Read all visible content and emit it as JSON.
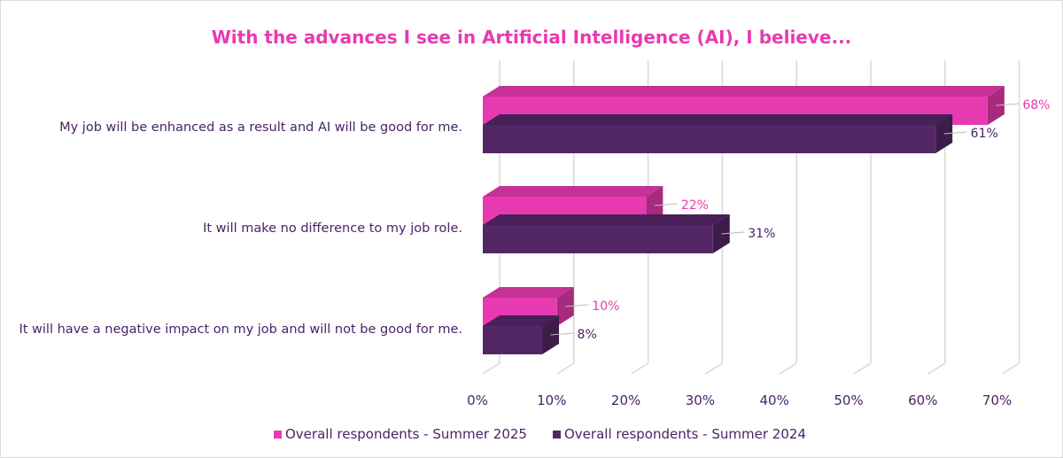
{
  "chart_data": {
    "type": "bar",
    "orientation": "horizontal",
    "title": "With the advances I see in Artificial Intelligence (AI), I believe...",
    "categories": [
      "My job will be enhanced as a result and AI will be good for me.",
      "It will make no difference to my job role.",
      "It will have a negative impact on my job and will not be good for me."
    ],
    "series": [
      {
        "name": "Overall respondents - Summer 2025",
        "values": [
          68,
          22,
          10
        ],
        "color": "#e83ab0"
      },
      {
        "name": "Overall respondents - Summer 2024",
        "values": [
          61,
          31,
          8
        ],
        "color": "#532766"
      }
    ],
    "value_unit": "%",
    "xlim": [
      0,
      70
    ],
    "x_ticks": [
      "0%",
      "10%",
      "20%",
      "30%",
      "40%",
      "50%",
      "60%",
      "70%"
    ],
    "grid": true,
    "legend_position": "bottom",
    "style": "3d"
  }
}
